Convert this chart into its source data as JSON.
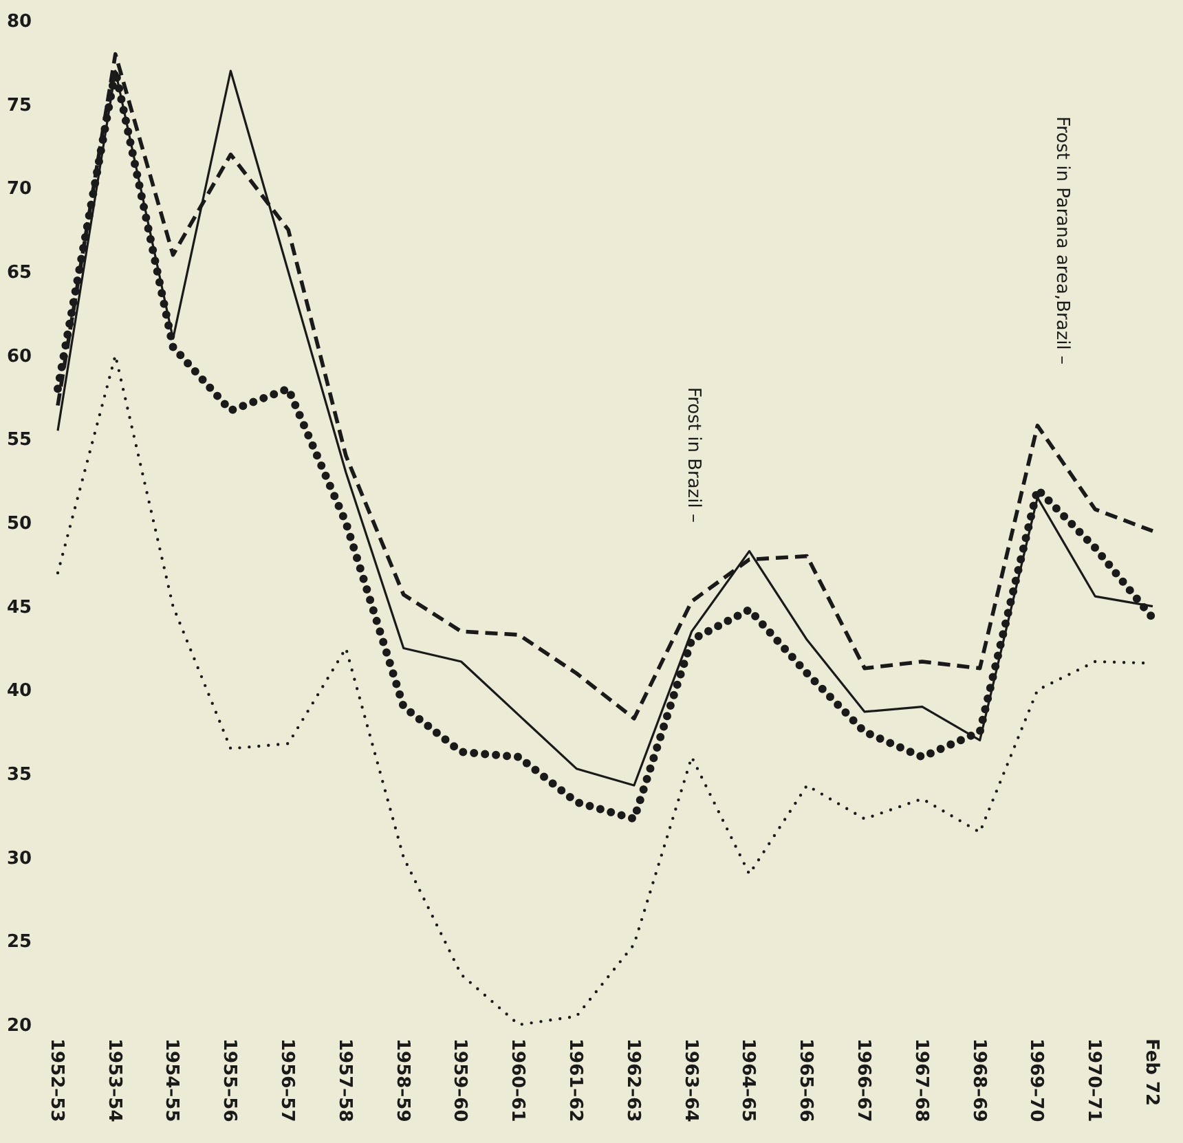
{
  "chart_data": {
    "type": "line",
    "categories": [
      "1952–53",
      "1953–54",
      "1954–55",
      "1955–56",
      "1956–57",
      "1957–58",
      "1958–59",
      "1959–60",
      "1960–61",
      "1961–62",
      "1962–63",
      "1963–64",
      "1964–65",
      "1965–66",
      "1966–67",
      "1967–68",
      "1968–69",
      "1969–70",
      "1970–71",
      "Feb 72"
    ],
    "series": [
      {
        "color": "#1a1a1a",
        "line_style": "solid",
        "values": [
          55.5,
          77,
          61,
          77,
          65,
          53,
          42.5,
          41.7,
          38.5,
          35.3,
          34.3,
          43.5,
          48.3,
          43,
          38.7,
          39,
          37,
          51.5,
          45.6,
          45
        ]
      },
      {
        "color": "#1a1a1a",
        "line_style": "dashed",
        "values": [
          57,
          78,
          66,
          72,
          67.5,
          54,
          45.7,
          43.5,
          43.3,
          41,
          38.3,
          45.3,
          47.8,
          48,
          41.3,
          41.7,
          41.3,
          55.8,
          50.8,
          49.5
        ]
      },
      {
        "color": "#1a1a1a",
        "line_style": "dotted",
        "values": [
          58,
          77,
          60.5,
          56.7,
          58,
          50,
          39,
          36.3,
          36,
          33.3,
          32.3,
          43,
          44.8,
          41,
          37.5,
          36,
          37.5,
          52,
          48.5,
          44.3
        ]
      },
      {
        "color": "#1a1a1a",
        "line_style": "dotted",
        "values": [
          47,
          60,
          45,
          36.5,
          36.8,
          42.5,
          30,
          23,
          20,
          20.5,
          24.8,
          36,
          29,
          34.3,
          32.3,
          33.5,
          31.5,
          40,
          41.7,
          41.6
        ]
      }
    ],
    "ylim": [
      20,
      80
    ],
    "yticks": [
      20,
      25,
      30,
      35,
      40,
      45,
      50,
      55,
      60,
      65,
      70,
      75,
      80
    ],
    "grid": false,
    "annotations": [
      "Frost in Brazil –",
      "Frost in Parana area,Brazil –"
    ]
  }
}
